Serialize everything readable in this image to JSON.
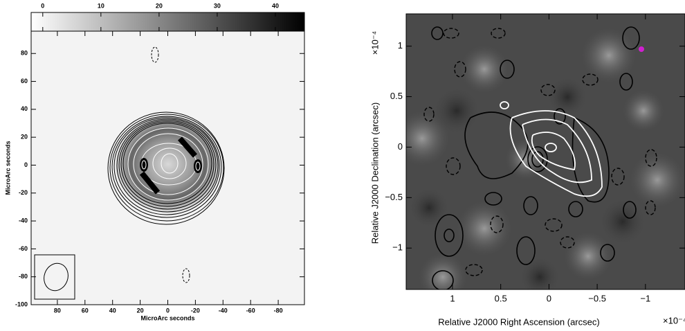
{
  "chart_data": [
    {
      "type": "image",
      "xlabel": "MicroArc seconds",
      "ylabel": "MicroArc seconds",
      "xlim": [
        99,
        -99
      ],
      "ylim": [
        -100,
        96
      ],
      "xticks": [
        80,
        60,
        40,
        20,
        0,
        -20,
        -40,
        -60,
        -80
      ],
      "yticks": [
        -100,
        -80,
        -60,
        -40,
        -20,
        0,
        20,
        40,
        60,
        80
      ],
      "colorbar": {
        "lim": [
          -2,
          45
        ],
        "ticks": [
          0,
          10,
          20,
          30,
          40
        ],
        "colormap": [
          "#ffffff",
          "#000000"
        ]
      }
    },
    {
      "type": "image",
      "xlabel": "Relative J2000 Right Ascension (arcsec)",
      "ylabel": "Relative J2000 Declination (arcsec)",
      "x_scale": "×10⁻⁴",
      "y_scale": "×10⁻⁴",
      "xlim": [
        1.48,
        -1.41
      ],
      "ylim": [
        -1.41,
        1.32
      ],
      "xticks": [
        1,
        0.5,
        0,
        {
          "value": -0.5,
          "label": "−0.5"
        },
        {
          "value": -1,
          "label": "−1"
        }
      ],
      "yticks": [
        {
          "value": -1,
          "label": "−1"
        },
        {
          "value": -0.5,
          "label": "−0.5"
        },
        0,
        0.5,
        1
      ]
    }
  ]
}
